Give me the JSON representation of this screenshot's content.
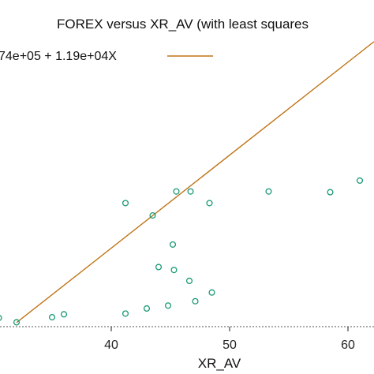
{
  "chart_data": {
    "type": "scatter",
    "title": "FOREX versus XR_AV (with least squares",
    "xlabel": "XR_AV",
    "ylabel": "",
    "x_ticks": [
      40,
      50,
      60
    ],
    "xlim": [
      30.6,
      62.2
    ],
    "ylim": [
      -0.3,
      20.0
    ],
    "grid": false,
    "legend_position": "top-left",
    "colors": {
      "points": "#1a9977",
      "fit_line": "#c07418",
      "axis": "#222222"
    },
    "fit": {
      "label": "74e+05 + 1.19e+04X",
      "x_range": [
        32.0,
        62.2
      ]
    },
    "series": [
      {
        "points": [
          {
            "x": 30.5,
            "y": 0.3
          },
          {
            "x": 32.0,
            "y": 0.0
          },
          {
            "x": 35.0,
            "y": 0.35
          },
          {
            "x": 36.0,
            "y": 0.55
          },
          {
            "x": 41.2,
            "y": 0.6
          },
          {
            "x": 41.2,
            "y": 8.2
          },
          {
            "x": 43.0,
            "y": 0.95
          },
          {
            "x": 43.5,
            "y": 7.35
          },
          {
            "x": 44.0,
            "y": 3.8
          },
          {
            "x": 44.8,
            "y": 1.15
          },
          {
            "x": 45.2,
            "y": 5.35
          },
          {
            "x": 45.3,
            "y": 3.6
          },
          {
            "x": 45.5,
            "y": 9.0
          },
          {
            "x": 46.6,
            "y": 2.85
          },
          {
            "x": 46.7,
            "y": 9.0
          },
          {
            "x": 47.1,
            "y": 1.45
          },
          {
            "x": 48.3,
            "y": 8.2
          },
          {
            "x": 48.5,
            "y": 2.05
          },
          {
            "x": 53.3,
            "y": 9.0
          },
          {
            "x": 58.5,
            "y": 8.95
          },
          {
            "x": 61.0,
            "y": 9.75
          }
        ]
      }
    ]
  }
}
